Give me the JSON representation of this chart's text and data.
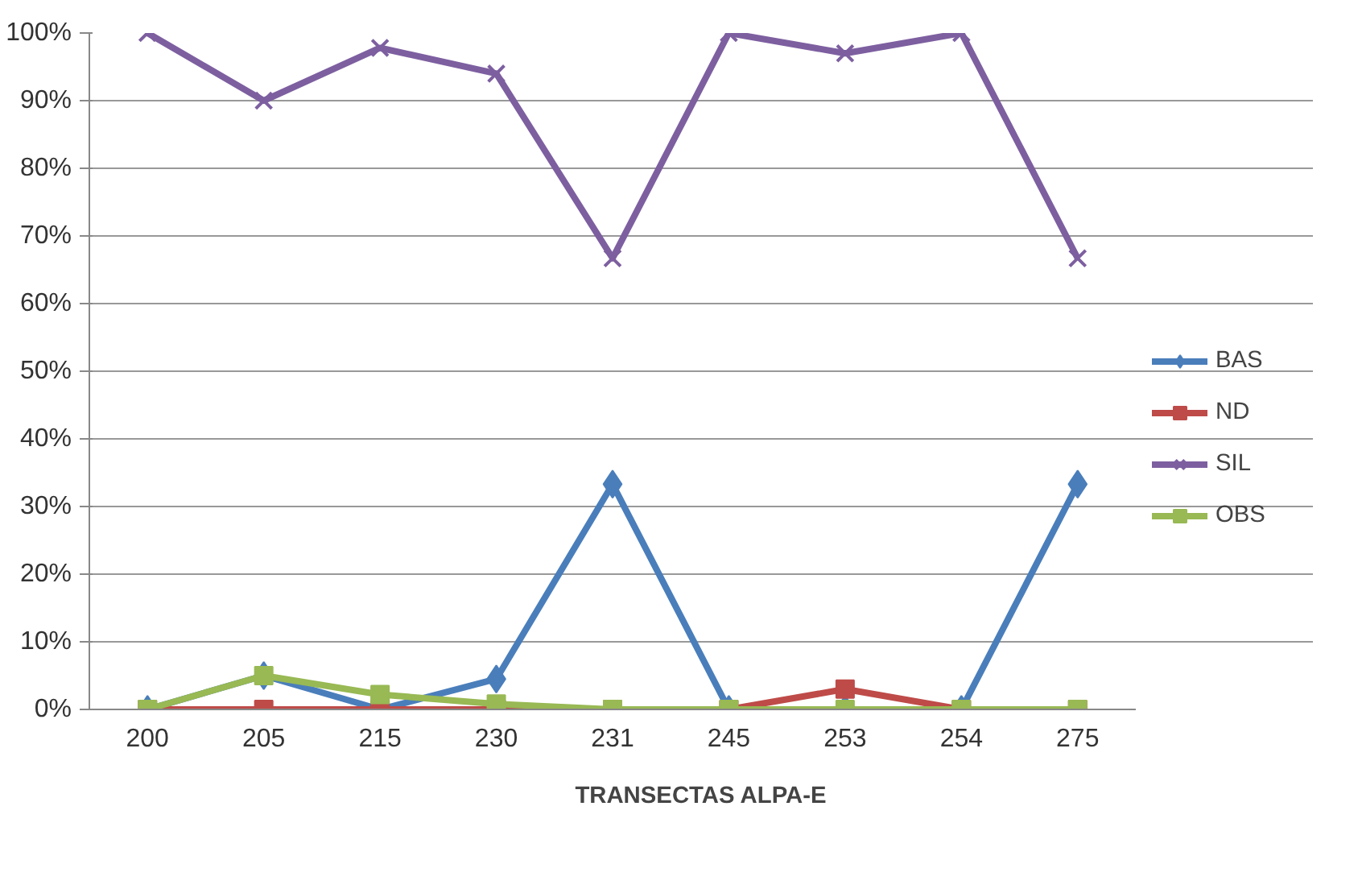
{
  "chart_data": {
    "type": "line",
    "xlabel": "TRANSECTAS ALPA-E",
    "categories": [
      "200",
      "205",
      "215",
      "230",
      "231",
      "245",
      "253",
      "254",
      "275"
    ],
    "series": [
      {
        "name": "BAS",
        "color": "#4a7ebb",
        "marker": "diamond",
        "values": [
          0,
          5,
          0,
          4.5,
          33.3,
          0,
          0,
          0,
          33.3
        ]
      },
      {
        "name": "ND",
        "color": "#be4b48",
        "marker": "square",
        "values": [
          0,
          0,
          0,
          0,
          0,
          0,
          3,
          0,
          0
        ]
      },
      {
        "name": "SIL",
        "color": "#7d5fa0",
        "marker": "cross",
        "values": [
          100,
          90,
          97.8,
          94,
          66.7,
          100,
          97,
          100,
          66.7
        ]
      },
      {
        "name": "OBS",
        "color": "#98b954",
        "marker": "square",
        "values": [
          0,
          5,
          2.2,
          0.8,
          0,
          0,
          0,
          0,
          0
        ]
      }
    ],
    "ylim": [
      0,
      100
    ],
    "yticks": [
      {
        "value": 0,
        "label": "0%"
      },
      {
        "value": 10,
        "label": "10%"
      },
      {
        "value": 20,
        "label": "20%"
      },
      {
        "value": 30,
        "label": "30%"
      },
      {
        "value": 40,
        "label": "40%"
      },
      {
        "value": 50,
        "label": "50%"
      },
      {
        "value": 60,
        "label": "60%"
      },
      {
        "value": 70,
        "label": "70%"
      },
      {
        "value": 80,
        "label": "80%"
      },
      {
        "value": 90,
        "label": "90%"
      },
      {
        "value": 100,
        "label": "100%"
      }
    ],
    "grid": "y",
    "legend": "right"
  }
}
